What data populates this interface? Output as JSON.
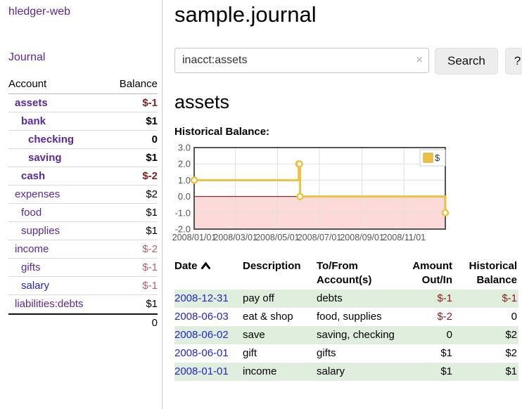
{
  "colors": {
    "link_purple": "#5a28a0",
    "link_blue": "#2323d8",
    "negative_strong": "#8c1b1b",
    "negative_soft": "#b26168",
    "row_green": "#dfeedd",
    "chart_series": "#edc240",
    "chart_negative_region": "#fcdada",
    "chart_zero_line": "#8b0000"
  },
  "sidebar": {
    "brand": "hledger-web",
    "nav": {
      "journal": "Journal"
    },
    "accounts_table": {
      "headers": {
        "account": "Account",
        "balance": "Balance"
      },
      "rows": [
        {
          "name": "assets",
          "indent": 1,
          "bold": true,
          "balance": "$-1",
          "neg": "strong"
        },
        {
          "name": "bank",
          "indent": 2,
          "bold": true,
          "balance": "$1",
          "neg": null
        },
        {
          "name": "checking",
          "indent": 3,
          "bold": true,
          "balance": "0",
          "neg": null
        },
        {
          "name": "saving",
          "indent": 3,
          "bold": true,
          "balance": "$1",
          "neg": null
        },
        {
          "name": "cash",
          "indent": 2,
          "bold": true,
          "balance": "$-2",
          "neg": "strong"
        },
        {
          "name": "expenses",
          "indent": 1,
          "bold": false,
          "balance": "$2",
          "neg": null
        },
        {
          "name": "food",
          "indent": 2,
          "bold": false,
          "balance": "$1",
          "neg": null
        },
        {
          "name": "supplies",
          "indent": 2,
          "bold": false,
          "balance": "$1",
          "neg": null
        },
        {
          "name": "income",
          "indent": 1,
          "bold": false,
          "balance": "$-2",
          "neg": "soft"
        },
        {
          "name": "gifts",
          "indent": 2,
          "bold": false,
          "balance": "$-1",
          "neg": "soft"
        },
        {
          "name": "salary",
          "indent": 2,
          "bold": false,
          "balance": "$-1",
          "neg": "soft",
          "unvisited": true
        },
        {
          "name": "liabilities:debts",
          "indent": 1,
          "bold": false,
          "balance": "$1",
          "neg": null
        }
      ],
      "total": "0"
    }
  },
  "header": {
    "title": "sample.journal"
  },
  "search": {
    "value": "inacct:assets",
    "clear_icon": "×",
    "button_label": "Search",
    "help_label": "?"
  },
  "account_page": {
    "title": "assets",
    "chart_label": "Historical Balance:"
  },
  "chart_data": {
    "type": "line",
    "title": "Historical Balance",
    "step": true,
    "x_range": [
      "2008-01-01",
      "2008-12-31"
    ],
    "ylim": [
      -2.0,
      3.0
    ],
    "y_ticks": [
      3.0,
      2.0,
      1.0,
      0.0,
      -1.0,
      -2.0
    ],
    "x_ticks": [
      "2008/01/01",
      "2008/03/01",
      "2008/05/01",
      "2008/07/01",
      "2008/09/01",
      "2008/11/01"
    ],
    "grid": true,
    "legend": {
      "label": "$",
      "position": "top-right"
    },
    "series": [
      {
        "name": "$",
        "color": "#edc240",
        "points": [
          {
            "date": "2008-01-01",
            "value": 1
          },
          {
            "date": "2008-06-01",
            "value": 2
          },
          {
            "date": "2008-06-02",
            "value": 2
          },
          {
            "date": "2008-06-03",
            "value": 0
          },
          {
            "date": "2008-12-31",
            "value": -1
          }
        ]
      }
    ]
  },
  "table": {
    "headers": [
      "Date",
      "Description",
      "To/From Account(s)",
      "Amount Out/In",
      "Historical Balance"
    ],
    "sort": {
      "column": "Date",
      "direction": "ascending"
    },
    "rows": [
      {
        "date": "2008-12-31",
        "description": "pay off",
        "accounts": "debts",
        "amount": "$-1",
        "amount_neg": true,
        "balance": "$-1",
        "balance_neg": true,
        "shaded": true
      },
      {
        "date": "2008-06-03",
        "description": "eat & shop",
        "accounts": "food, supplies",
        "amount": "$-2",
        "amount_neg": true,
        "balance": "0",
        "balance_neg": false,
        "shaded": false
      },
      {
        "date": "2008-06-02",
        "description": "save",
        "accounts": "saving, checking",
        "amount": "0",
        "amount_neg": false,
        "balance": "$2",
        "balance_neg": false,
        "shaded": true
      },
      {
        "date": "2008-06-01",
        "description": "gift",
        "accounts": "gifts",
        "amount": "$1",
        "amount_neg": false,
        "balance": "$2",
        "balance_neg": false,
        "shaded": false
      },
      {
        "date": "2008-01-01",
        "description": "income",
        "accounts": "salary",
        "amount": "$1",
        "amount_neg": false,
        "balance": "$1",
        "balance_neg": false,
        "shaded": true
      }
    ]
  }
}
